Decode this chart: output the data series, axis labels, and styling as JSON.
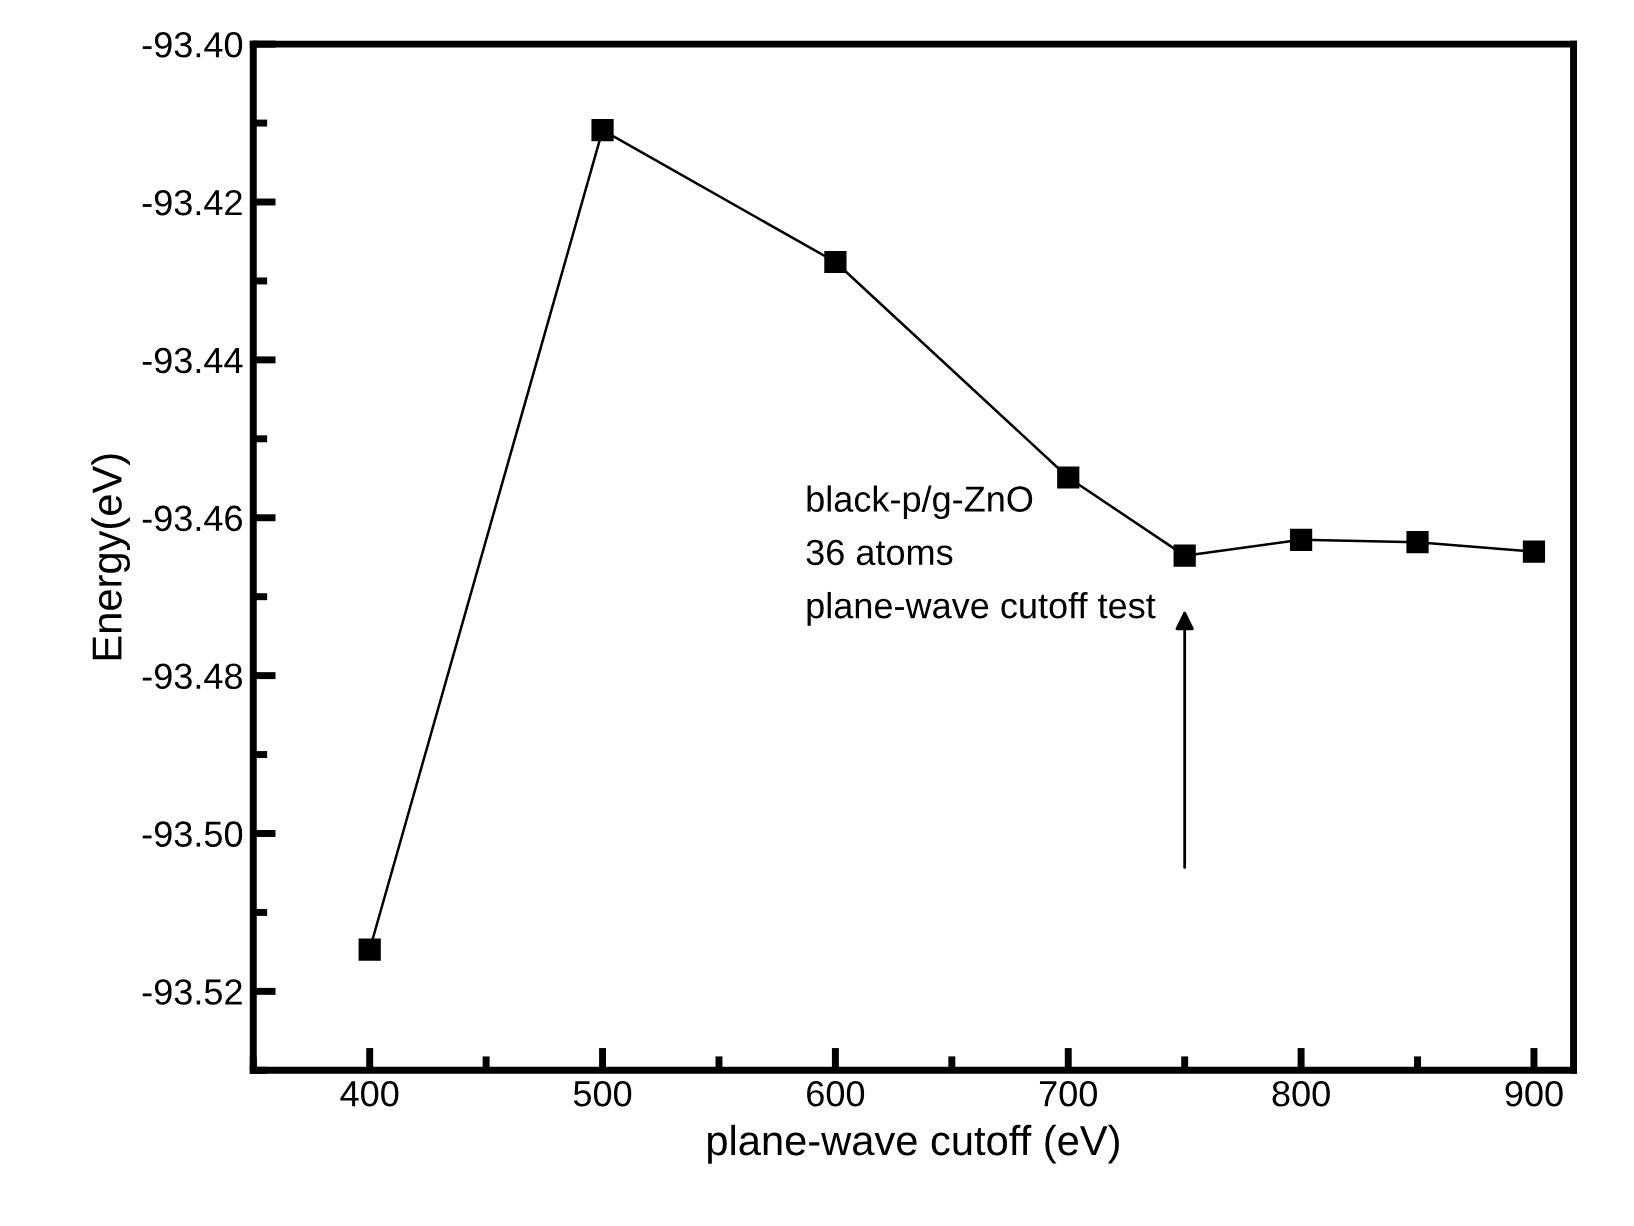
{
  "chart_data": {
    "type": "line",
    "xlabel": "plane-wave cutoff (eV)",
    "ylabel": "Energy(eV)",
    "x": [
      400,
      500,
      600,
      700,
      750,
      800,
      850,
      900
    ],
    "series": [
      {
        "color": "#000000",
        "values": [
          -93.5147,
          -93.4109,
          -93.4276,
          -93.4549,
          -93.4648,
          -93.4628,
          -93.4631,
          -93.4643
        ]
      }
    ],
    "xlim": [
      350,
      917
    ],
    "xticks": [
      400,
      500,
      600,
      700,
      800,
      900
    ],
    "ylim": [
      -93.53,
      -93.4
    ],
    "yticks": [
      {
        "value": -93.52,
        "label": "-93.52"
      },
      {
        "value": -93.5,
        "label": "-93.50"
      },
      {
        "value": -93.48,
        "label": "-93.48"
      },
      {
        "value": -93.46,
        "label": "-93.46"
      },
      {
        "value": -93.44,
        "label": "-93.44"
      },
      {
        "value": -93.42,
        "label": "-93.42"
      },
      {
        "value": -93.4,
        "label": "-93.40"
      }
    ],
    "marker": "square",
    "line_style": "solid",
    "grid": false,
    "legend": false,
    "annotations": [
      "black-p/g-ZnO\n36 atoms\nplane-wave cutoff test"
    ]
  }
}
